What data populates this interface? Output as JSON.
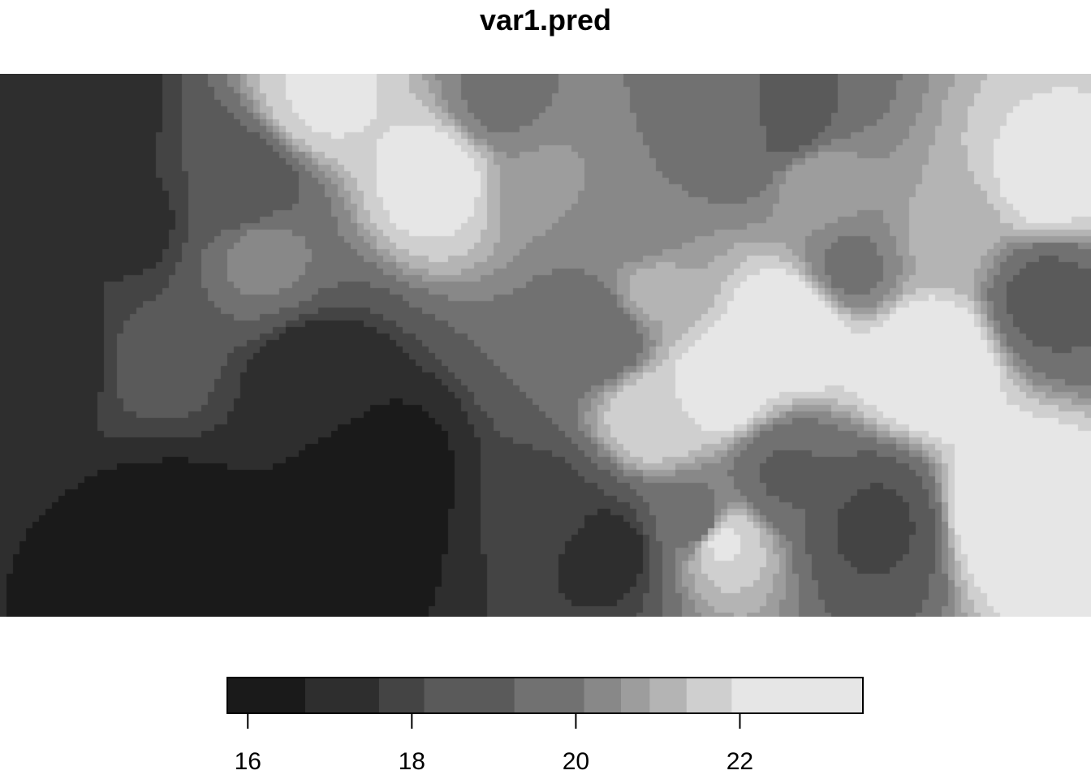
{
  "chart_data": {
    "type": "heatmap",
    "title": "var1.pred",
    "xlabel": "",
    "ylabel": "",
    "colormap": "grayscale",
    "value_range": [
      15.75,
      23.5
    ],
    "legend": {
      "position": "bottom",
      "ticks": [
        16,
        18,
        20,
        22
      ],
      "tick_labels": [
        "16",
        "18",
        "20",
        "22"
      ],
      "bins": [
        {
          "from": 15.75,
          "to": 16.7,
          "color": "#1a1a1a"
        },
        {
          "from": 16.7,
          "to": 17.6,
          "color": "#2e2e2e"
        },
        {
          "from": 17.6,
          "to": 18.15,
          "color": "#444444"
        },
        {
          "from": 18.15,
          "to": 19.25,
          "color": "#5a5a5a"
        },
        {
          "from": 19.25,
          "to": 20.1,
          "color": "#717171"
        },
        {
          "from": 20.1,
          "to": 20.55,
          "color": "#888888"
        },
        {
          "from": 20.55,
          "to": 20.9,
          "color": "#9d9d9d"
        },
        {
          "from": 20.9,
          "to": 21.35,
          "color": "#b4b4b4"
        },
        {
          "from": 21.35,
          "to": 21.9,
          "color": "#cfcfcf"
        },
        {
          "from": 21.9,
          "to": 23.5,
          "color": "#e6e6e6"
        }
      ]
    },
    "field_centers": [
      {
        "x": 0.07,
        "y": 0.06,
        "v": 16.8
      },
      {
        "x": 0.22,
        "y": 0.22,
        "v": 18.3
      },
      {
        "x": 0.12,
        "y": 0.27,
        "v": 17.4
      },
      {
        "x": 0.06,
        "y": 0.52,
        "v": 17.2
      },
      {
        "x": 0.15,
        "y": 0.85,
        "v": 16.0
      },
      {
        "x": 0.33,
        "y": 0.85,
        "v": 16.2
      },
      {
        "x": 0.29,
        "y": 0.56,
        "v": 17.0
      },
      {
        "x": 0.35,
        "y": 0.74,
        "v": 16.1
      },
      {
        "x": 0.14,
        "y": 0.53,
        "v": 18.4
      },
      {
        "x": 0.24,
        "y": 0.33,
        "v": 20.3
      },
      {
        "x": 0.3,
        "y": 0.04,
        "v": 22.0
      },
      {
        "x": 0.4,
        "y": 0.19,
        "v": 22.3
      },
      {
        "x": 0.46,
        "y": 0.05,
        "v": 20.0
      },
      {
        "x": 0.5,
        "y": 0.2,
        "v": 20.6
      },
      {
        "x": 0.58,
        "y": 0.28,
        "v": 20.1
      },
      {
        "x": 0.55,
        "y": 0.48,
        "v": 19.3
      },
      {
        "x": 0.5,
        "y": 0.8,
        "v": 17.8
      },
      {
        "x": 0.56,
        "y": 0.88,
        "v": 17.3
      },
      {
        "x": 0.6,
        "y": 0.63,
        "v": 21.8
      },
      {
        "x": 0.66,
        "y": 0.57,
        "v": 22.5
      },
      {
        "x": 0.68,
        "y": 0.1,
        "v": 19.6
      },
      {
        "x": 0.72,
        "y": 0.09,
        "v": 18.8
      },
      {
        "x": 0.75,
        "y": 0.2,
        "v": 20.8
      },
      {
        "x": 0.78,
        "y": 0.36,
        "v": 20.0
      },
      {
        "x": 0.66,
        "y": 0.86,
        "v": 22.0
      },
      {
        "x": 0.64,
        "y": 0.83,
        "v": 19.6
      },
      {
        "x": 0.8,
        "y": 0.83,
        "v": 18.0
      },
      {
        "x": 0.72,
        "y": 0.74,
        "v": 19.2
      },
      {
        "x": 0.73,
        "y": 0.46,
        "v": 23.0
      },
      {
        "x": 0.85,
        "y": 0.52,
        "v": 23.2
      },
      {
        "x": 0.93,
        "y": 0.8,
        "v": 23.0
      },
      {
        "x": 0.96,
        "y": 0.2,
        "v": 22.2
      },
      {
        "x": 0.96,
        "y": 0.41,
        "v": 19.0
      },
      {
        "x": 0.87,
        "y": 0.3,
        "v": 21.0
      },
      {
        "x": 0.6,
        "y": 0.4,
        "v": 21.0
      }
    ]
  }
}
